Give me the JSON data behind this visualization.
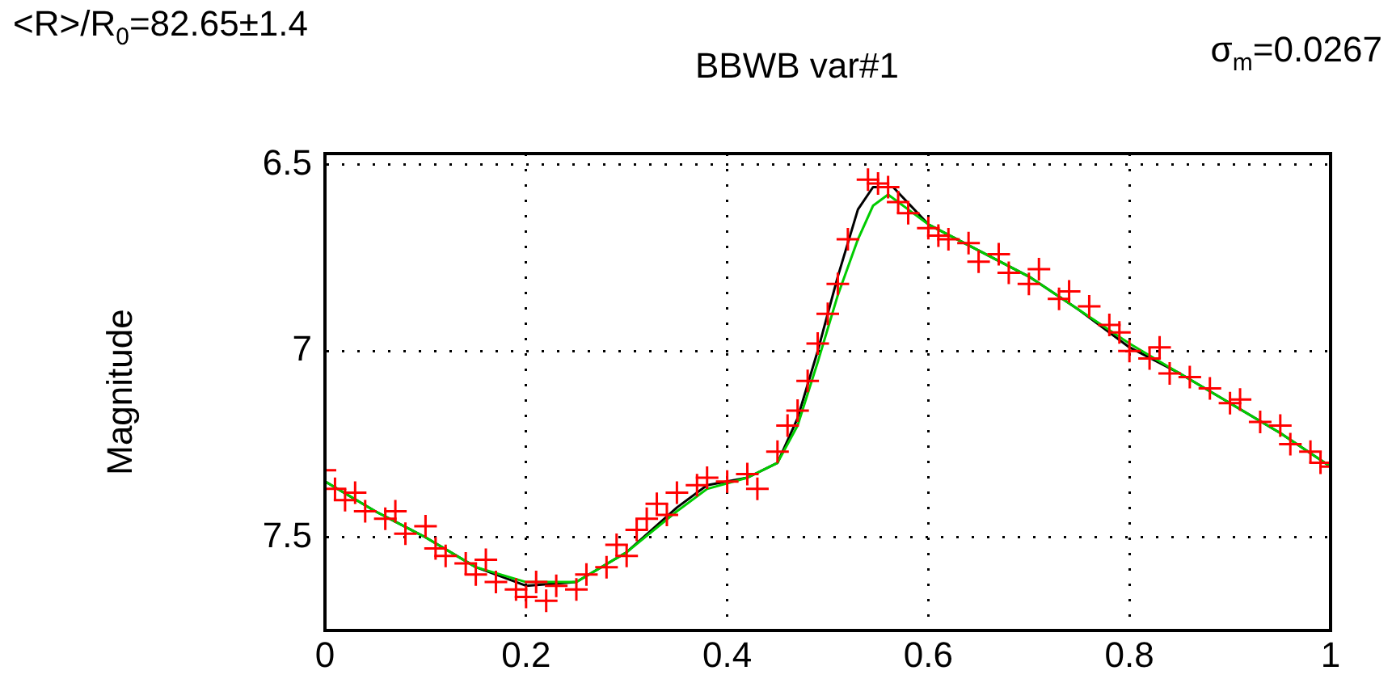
{
  "chart_data": {
    "type": "scatter",
    "title": "BBWB var#1",
    "ylabel": "Magnitude",
    "annotations": [
      "<R>/R$_{0}$=82.65±1.4",
      "σ$_{m}$=0.0267"
    ],
    "xlim": [
      0,
      1
    ],
    "xticks": [
      0,
      0.2,
      0.4,
      0.6,
      0.8,
      1
    ],
    "ylim": [
      7.75,
      6.47
    ],
    "yticks": [
      6.5,
      7,
      7.5
    ],
    "grid": true,
    "legend": false,
    "series": [
      {
        "marker": "cross",
        "color": "#ff0000",
        "x": [
          0,
          0.01,
          0.02,
          0.03,
          0.04,
          0.06,
          0.07,
          0.08,
          0.1,
          0.11,
          0.12,
          0.14,
          0.15,
          0.16,
          0.17,
          0.19,
          0.2,
          0.21,
          0.22,
          0.23,
          0.25,
          0.26,
          0.28,
          0.29,
          0.3,
          0.31,
          0.32,
          0.33,
          0.34,
          0.35,
          0.37,
          0.38,
          0.4,
          0.42,
          0.43,
          0.45,
          0.46,
          0.47,
          0.48,
          0.49,
          0.5,
          0.51,
          0.52,
          0.54,
          0.55,
          0.56,
          0.57,
          0.58,
          0.6,
          0.61,
          0.62,
          0.64,
          0.65,
          0.67,
          0.68,
          0.7,
          0.71,
          0.73,
          0.74,
          0.76,
          0.78,
          0.79,
          0.8,
          0.82,
          0.83,
          0.84,
          0.86,
          0.88,
          0.9,
          0.91,
          0.93,
          0.95,
          0.96,
          0.98,
          0.99,
          1
        ],
        "values": [
          7.32,
          7.37,
          7.4,
          7.38,
          7.43,
          7.45,
          7.43,
          7.49,
          7.47,
          7.53,
          7.55,
          7.57,
          7.6,
          7.56,
          7.62,
          7.64,
          7.66,
          7.62,
          7.67,
          7.63,
          7.64,
          7.6,
          7.58,
          7.52,
          7.55,
          7.48,
          7.45,
          7.41,
          7.44,
          7.38,
          7.36,
          7.34,
          7.35,
          7.33,
          7.37,
          7.27,
          7.2,
          7.16,
          7.08,
          6.98,
          6.9,
          6.82,
          6.7,
          6.54,
          6.55,
          6.56,
          6.6,
          6.63,
          6.67,
          6.69,
          6.7,
          6.71,
          6.76,
          6.74,
          6.79,
          6.82,
          6.78,
          6.86,
          6.84,
          6.88,
          6.93,
          6.95,
          7.0,
          7.02,
          6.99,
          7.06,
          7.07,
          7.1,
          7.14,
          7.13,
          7.19,
          7.2,
          7.25,
          7.27,
          7.3,
          7.31
        ]
      },
      {
        "type": "line",
        "marker": "none",
        "color": "#00cc00",
        "x": [
          0,
          0.05,
          0.1,
          0.15,
          0.2,
          0.25,
          0.3,
          0.35,
          0.38,
          0.42,
          0.45,
          0.47,
          0.49,
          0.51,
          0.53,
          0.545,
          0.56,
          0.58,
          0.6,
          0.65,
          0.7,
          0.75,
          0.8,
          0.85,
          0.9,
          0.95,
          1
        ],
        "values": [
          7.35,
          7.43,
          7.5,
          7.58,
          7.62,
          7.62,
          7.54,
          7.43,
          7.37,
          7.34,
          7.3,
          7.2,
          7.03,
          6.85,
          6.7,
          6.61,
          6.58,
          6.62,
          6.66,
          6.73,
          6.8,
          6.89,
          6.98,
          7.06,
          7.14,
          7.22,
          7.31
        ]
      },
      {
        "type": "line",
        "marker": "none",
        "color": "#000000",
        "x": [
          0,
          0.05,
          0.1,
          0.15,
          0.2,
          0.25,
          0.3,
          0.35,
          0.38,
          0.42,
          0.45,
          0.47,
          0.49,
          0.51,
          0.53,
          0.545,
          0.565,
          0.6,
          0.65,
          0.7,
          0.75,
          0.8,
          0.85,
          0.9,
          0.95,
          1
        ],
        "values": [
          7.35,
          7.43,
          7.5,
          7.58,
          7.63,
          7.62,
          7.54,
          7.42,
          7.36,
          7.34,
          7.3,
          7.18,
          7.0,
          6.8,
          6.62,
          6.56,
          6.56,
          6.66,
          6.73,
          6.8,
          6.89,
          6.99,
          7.06,
          7.14,
          7.22,
          7.31
        ]
      }
    ]
  }
}
